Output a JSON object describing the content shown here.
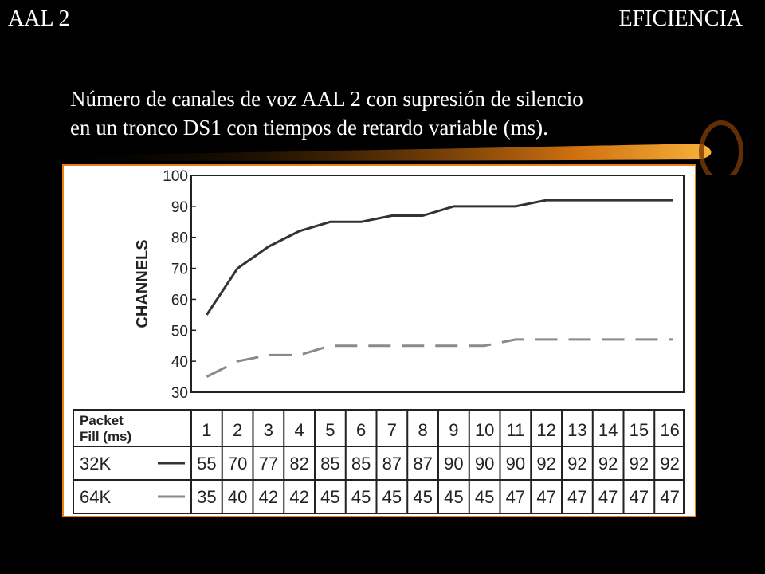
{
  "header": {
    "left": "AAL 2",
    "right": "EFICIENCIA"
  },
  "subtitle": {
    "line1": "Número de canales de voz AAL 2 con supresión de silencio",
    "line2": "en un tronco DS1 con tiempos de retardo variable (ms)."
  },
  "colors": {
    "background": "#000000",
    "text": "#ffffff",
    "accent_orange": "#f29a1e",
    "border_orange": "#e87f10",
    "series_32k": "#333333",
    "series_64k": "#8a8a8a"
  },
  "chart_data": {
    "type": "line",
    "ylabel": "CHANNELS",
    "xlabel": "",
    "ylim": [
      30,
      100
    ],
    "yticks": [
      "30",
      "40",
      "50",
      "60",
      "70",
      "80",
      "90",
      "100"
    ],
    "x": [
      1,
      2,
      3,
      4,
      5,
      6,
      7,
      8,
      9,
      10,
      11,
      12,
      13,
      14,
      15,
      16
    ],
    "grid": false,
    "series": [
      {
        "name": "32K",
        "style": "solid",
        "values": [
          55,
          70,
          77,
          82,
          85,
          85,
          87,
          87,
          90,
          90,
          90,
          92,
          92,
          92,
          92,
          92
        ]
      },
      {
        "name": "64K",
        "style": "dashed",
        "values": [
          35,
          40,
          42,
          42,
          45,
          45,
          45,
          45,
          45,
          45,
          47,
          47,
          47,
          47,
          47,
          47
        ]
      }
    ],
    "table": {
      "header_label_line1": "Packet",
      "header_label_line2": "Fill (ms)",
      "columns": [
        "1",
        "2",
        "3",
        "4",
        "5",
        "6",
        "7",
        "8",
        "9",
        "10",
        "11",
        "12",
        "13",
        "14",
        "15",
        "16"
      ],
      "rows": [
        {
          "label": "32K",
          "values": [
            "55",
            "70",
            "77",
            "82",
            "85",
            "85",
            "87",
            "87",
            "90",
            "90",
            "90",
            "92",
            "92",
            "92",
            "92",
            "92"
          ]
        },
        {
          "label": "64K",
          "values": [
            "35",
            "40",
            "42",
            "42",
            "45",
            "45",
            "45",
            "45",
            "45",
            "45",
            "47",
            "47",
            "47",
            "47",
            "47",
            "47"
          ]
        }
      ]
    }
  }
}
